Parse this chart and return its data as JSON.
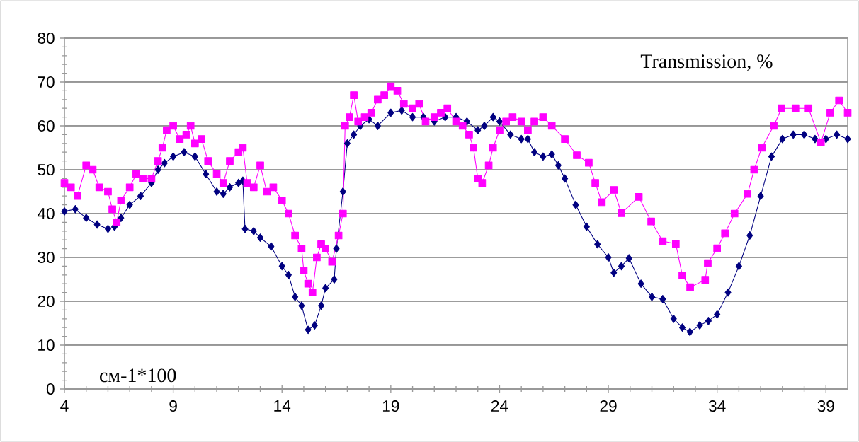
{
  "chart_data": {
    "type": "line",
    "xlabel": "см-1*100",
    "ylabel": "Transmission, %",
    "xlim": [
      4,
      40
    ],
    "xticks": [
      4,
      9,
      14,
      19,
      24,
      29,
      34,
      39
    ],
    "ylim": [
      0,
      80
    ],
    "yticks": [
      0,
      10,
      20,
      30,
      40,
      50,
      60,
      70,
      80
    ],
    "grid": "y",
    "line_style": "solid",
    "series": [
      {
        "color": "#000080",
        "marker": "diamond",
        "x": [
          4,
          4.5,
          5,
          5.5,
          6,
          6.3,
          6.6,
          7,
          7.5,
          8,
          8.3,
          8.6,
          9,
          9.5,
          10,
          10.5,
          11,
          11.3,
          11.6,
          12,
          12.2,
          12.3,
          12.7,
          13,
          13.5,
          14,
          14.3,
          14.6,
          14.9,
          15.2,
          15.5,
          15.8,
          16,
          16.4,
          16.5,
          16.8,
          17,
          17.3,
          17.6,
          18,
          18.4,
          19,
          19.5,
          20,
          20.5,
          21,
          21.5,
          22,
          22.5,
          23,
          23.3,
          23.7,
          24,
          24.5,
          25,
          25.3,
          25.6,
          26,
          26.4,
          26.7,
          27,
          27.5,
          28,
          28.5,
          29,
          29.25,
          29.6,
          29.95,
          30.5,
          31,
          31.5,
          32,
          32.4,
          32.75,
          33.2,
          33.6,
          34,
          34.5,
          35,
          35.5,
          36,
          36.5,
          37,
          37.5,
          38,
          38.5,
          39,
          39.5,
          40
        ],
        "values": [
          40.5,
          41,
          39,
          37.5,
          36.5,
          37,
          39,
          42,
          44,
          47,
          50,
          51.5,
          53,
          54,
          53,
          49,
          45,
          44.5,
          46,
          47,
          47.5,
          36.5,
          36,
          34.5,
          32.5,
          28,
          26,
          21,
          19,
          13.5,
          14.5,
          19,
          23,
          25,
          32,
          45,
          56,
          58,
          60,
          61.5,
          60,
          63,
          63.5,
          62,
          62,
          61,
          62,
          62,
          61,
          59,
          60,
          62,
          61,
          58,
          57,
          57,
          54,
          53,
          53.5,
          51,
          48,
          42,
          37,
          33,
          30,
          26.5,
          28,
          29.8,
          24,
          21,
          20.5,
          16,
          14,
          13,
          14.5,
          15.5,
          17,
          22,
          28,
          35,
          44,
          53,
          57,
          58,
          58,
          57,
          57,
          58,
          57
        ]
      },
      {
        "color": "#ff00ff",
        "marker": "square",
        "x": [
          4,
          4.3,
          4.6,
          5,
          5.3,
          5.6,
          6,
          6.2,
          6.4,
          6.6,
          7,
          7.3,
          7.6,
          8,
          8.3,
          8.5,
          8.7,
          9,
          9.3,
          9.6,
          9.8,
          10,
          10.3,
          10.6,
          11,
          11.3,
          11.6,
          12,
          12.2,
          12.4,
          12.7,
          13,
          13.3,
          13.6,
          14,
          14.3,
          14.6,
          14.9,
          15,
          15.2,
          15.4,
          15.6,
          15.8,
          16,
          16.3,
          16.6,
          16.8,
          16.9,
          17.1,
          17.3,
          17.5,
          17.8,
          18.1,
          18.4,
          18.7,
          19,
          19.3,
          19.6,
          20,
          20.3,
          20.6,
          21,
          21.3,
          21.6,
          22,
          22.3,
          22.6,
          22.8,
          23,
          23.2,
          23.5,
          23.7,
          24,
          24.3,
          24.6,
          25,
          25.3,
          25.6,
          26,
          26.4,
          27,
          27.55,
          28.1,
          28.4,
          28.7,
          29.25,
          29.6,
          30.4,
          30.97,
          31.5,
          32.1,
          32.4,
          32.76,
          33.45,
          33.57,
          34,
          34.36,
          34.8,
          35.4,
          35.7,
          36.05,
          36.6,
          36.96,
          37.6,
          38.2,
          38.77,
          39.2,
          39.6,
          40
        ],
        "values": [
          47,
          46,
          44,
          51,
          50,
          46,
          45,
          41,
          38,
          43,
          46,
          49,
          48,
          48,
          52,
          55,
          59,
          60,
          57,
          58,
          60,
          56,
          57,
          52,
          49,
          47,
          52,
          54,
          55,
          47,
          46,
          51,
          45,
          46,
          43,
          40,
          35,
          32,
          27,
          24,
          22,
          30,
          33,
          32,
          29,
          35,
          40,
          60,
          62,
          67,
          61,
          62,
          63,
          66,
          67,
          69,
          68,
          65,
          64,
          65,
          61,
          62,
          63,
          64,
          61,
          60,
          58,
          55,
          48,
          47,
          51,
          55,
          59,
          61,
          62,
          61,
          59,
          61,
          62,
          60,
          57,
          53.3,
          51.6,
          47,
          42.6,
          45.4,
          40.1,
          43.8,
          38.2,
          33.7,
          33.1,
          25.9,
          23.2,
          24.9,
          28.7,
          32.1,
          35.5,
          40,
          44.5,
          50,
          55,
          60,
          64,
          64,
          64,
          56.2,
          63,
          65.8,
          63
        ]
      }
    ]
  }
}
